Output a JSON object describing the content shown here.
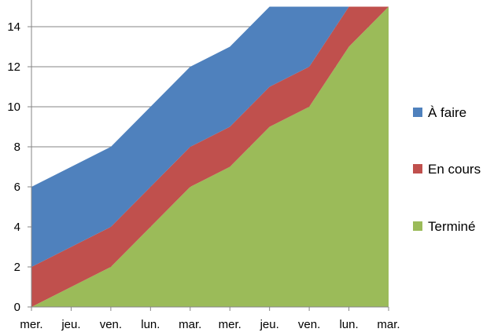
{
  "chart_data": {
    "type": "area",
    "stacked": true,
    "categories": [
      "mer.",
      "jeu.",
      "ven.",
      "lun.",
      "mar.",
      "mer.",
      "jeu.",
      "ven.",
      "lun.",
      "mar."
    ],
    "ylim": [
      0,
      15
    ],
    "yticks": [
      0,
      2,
      4,
      6,
      8,
      10,
      12,
      14
    ],
    "grid": true,
    "legend_position": "right",
    "title": "",
    "xlabel": "",
    "ylabel": "",
    "series": [
      {
        "name": "Terminé",
        "color": "#9BBB59",
        "values": [
          0,
          1,
          2,
          4,
          6,
          7,
          9,
          10,
          13,
          15
        ]
      },
      {
        "name": "En cours",
        "color": "#C0504D",
        "values": [
          2,
          2,
          2,
          2,
          2,
          2,
          2,
          2,
          2,
          0
        ]
      },
      {
        "name": "À faire",
        "color": "#4F81BD",
        "values": [
          4,
          4,
          4,
          4,
          4,
          4,
          4,
          3,
          0,
          0
        ]
      }
    ],
    "legend_order": [
      "À faire",
      "En cours",
      "Terminé"
    ]
  }
}
